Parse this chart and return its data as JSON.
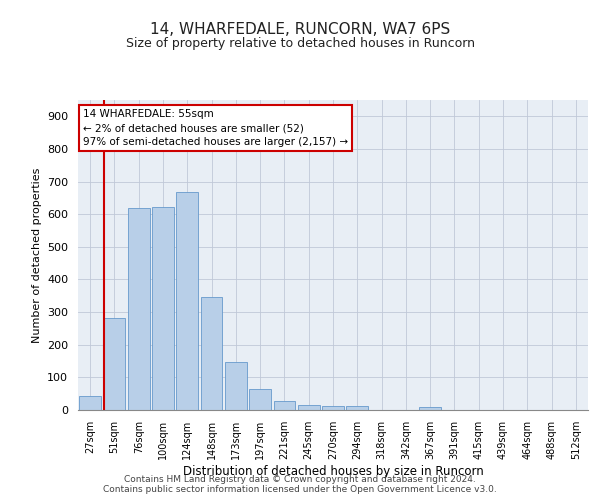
{
  "title": "14, WHARFEDALE, RUNCORN, WA7 6PS",
  "subtitle": "Size of property relative to detached houses in Runcorn",
  "xlabel": "Distribution of detached houses by size in Runcorn",
  "ylabel": "Number of detached properties",
  "categories": [
    "27sqm",
    "51sqm",
    "76sqm",
    "100sqm",
    "124sqm",
    "148sqm",
    "173sqm",
    "197sqm",
    "221sqm",
    "245sqm",
    "270sqm",
    "294sqm",
    "318sqm",
    "342sqm",
    "367sqm",
    "391sqm",
    "415sqm",
    "439sqm",
    "464sqm",
    "488sqm",
    "512sqm"
  ],
  "values": [
    42,
    283,
    620,
    622,
    668,
    345,
    147,
    65,
    28,
    14,
    11,
    11,
    0,
    0,
    8,
    0,
    0,
    0,
    0,
    0,
    0
  ],
  "bar_color": "#b8cfe8",
  "bar_edge_color": "#6699cc",
  "annotation_text": "14 WHARFEDALE: 55sqm\n← 2% of detached houses are smaller (52)\n97% of semi-detached houses are larger (2,157) →",
  "annotation_box_color": "#ffffff",
  "annotation_box_edge_color": "#cc0000",
  "vline_color": "#cc0000",
  "vline_x": 0.55,
  "ylim": [
    0,
    950
  ],
  "yticks": [
    0,
    100,
    200,
    300,
    400,
    500,
    600,
    700,
    800,
    900
  ],
  "background_color": "#ffffff",
  "axes_bg_color": "#e8eef5",
  "grid_color": "#c0c8d8",
  "footer1": "Contains HM Land Registry data © Crown copyright and database right 2024.",
  "footer2": "Contains public sector information licensed under the Open Government Licence v3.0."
}
